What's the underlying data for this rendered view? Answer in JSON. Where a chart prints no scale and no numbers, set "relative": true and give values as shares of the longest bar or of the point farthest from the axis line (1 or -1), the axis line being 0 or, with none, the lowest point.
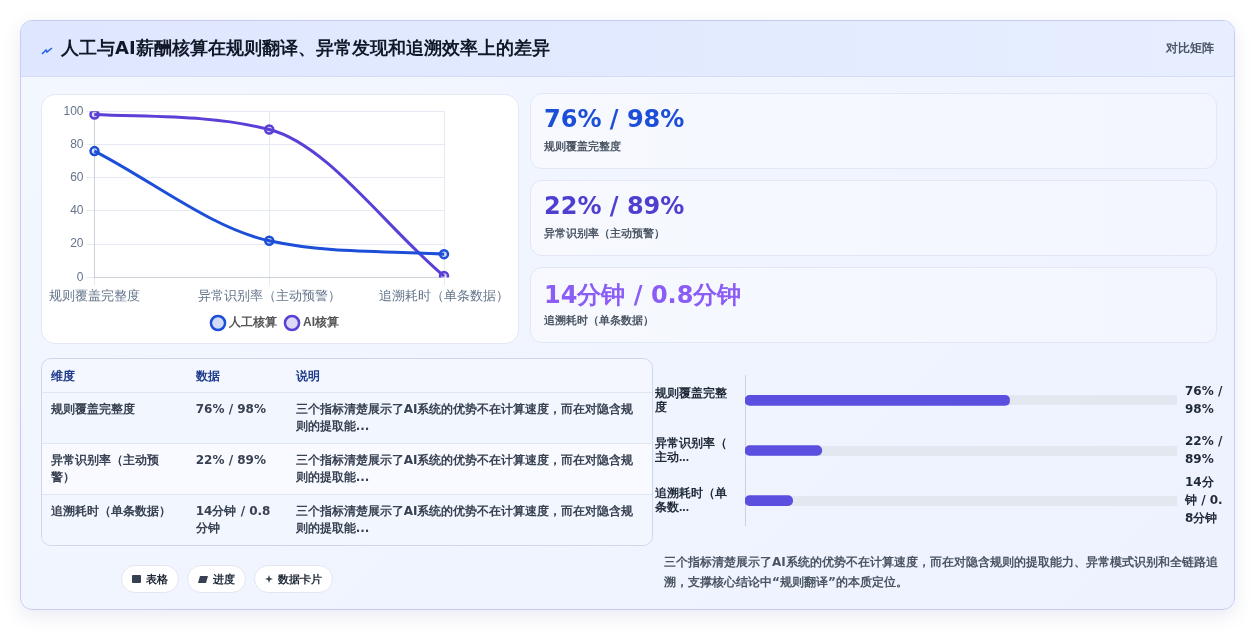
{
  "chart_data": [
    {
      "type": "other",
      "title": "人工与AI薪酬核算在规则翻译、异常发现和追溯效率上的差异",
      "subtitle": "对比矩阵"
    },
    {
      "type": "line",
      "categories": [
        "规则覆盖完整度",
        "异常识别率（主动预警）",
        "追溯耗时（单条数据）"
      ],
      "series": [
        {
          "name": "人工核算",
          "color": "#1d4ed8",
          "values": [
            76,
            22,
            14
          ]
        },
        {
          "name": "AI核算",
          "color": "#5b3fd6",
          "values": [
            98,
            89,
            0.8
          ]
        }
      ],
      "ylim": [
        0,
        100
      ],
      "yticks": [
        0,
        20,
        40,
        60,
        80,
        100
      ],
      "grid": true,
      "legend": "bottom",
      "marker": "circle"
    },
    {
      "type": "other",
      "annotations": [
        "76% / 98%",
        "规则覆盖完整度",
        "22% / 89%",
        "异常识别率（主动预警）",
        "14分钟 / 0.8分钟",
        "追溯耗时（单条数据）"
      ]
    },
    {
      "type": "other",
      "categories": [
        "维度",
        "数据",
        "说明"
      ],
      "annotations": [
        "规则覆盖完整度",
        "76% / 98%",
        "三个指标清楚展示了AI系统的优势不在计算速度，而在对隐含规则的提取能...",
        "异常识别率（主动预警）",
        "22% / 89%",
        "三个指标清楚展示了AI系统的优势不在计算速度，而在对隐含规则的提取能...",
        "追溯耗时（单条数据）",
        "14分钟 / 0.8分钟",
        "三个指标清楚展示了AI系统的优势不在计算速度，而在对隐含规则的提取能..."
      ]
    },
    {
      "type": "bar",
      "orientation": "horizontal",
      "relative": true,
      "categories": [
        "规则覆盖完整度",
        "异常识别率（主动...",
        "追溯耗时（单条数..."
      ],
      "values": [
        1,
        0.29,
        0.18
      ],
      "color": "#5b4fe0",
      "annotations": [
        "76% / 98%",
        "22% / 89%",
        "14分钟 / 0.8分钟",
        "三个指标清楚展示了AI系统的优势不在计算速度，而在对隐含规则的提取能力、异常模式识别和全链路追溯，支撑核心结论中“规则翻译”的本质定位。"
      ]
    },
    {
      "type": "other",
      "annotations": [
        "表格",
        "进度",
        "数据卡片"
      ]
    }
  ]
}
